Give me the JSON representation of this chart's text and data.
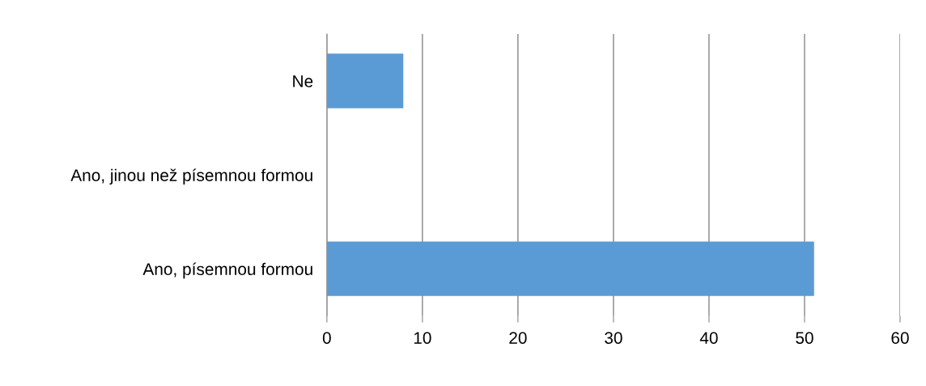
{
  "chart_data": {
    "type": "bar",
    "orientation": "horizontal",
    "categories": [
      "Ne",
      "Ano, jinou než písemnou formou",
      "Ano, písemnou formou"
    ],
    "values": [
      8,
      0,
      51
    ],
    "color": "#5b9bd5",
    "xlim": [
      0,
      60
    ],
    "xticks": [
      0,
      10,
      20,
      30,
      40,
      50,
      60
    ],
    "grid": "x",
    "legend": false
  }
}
